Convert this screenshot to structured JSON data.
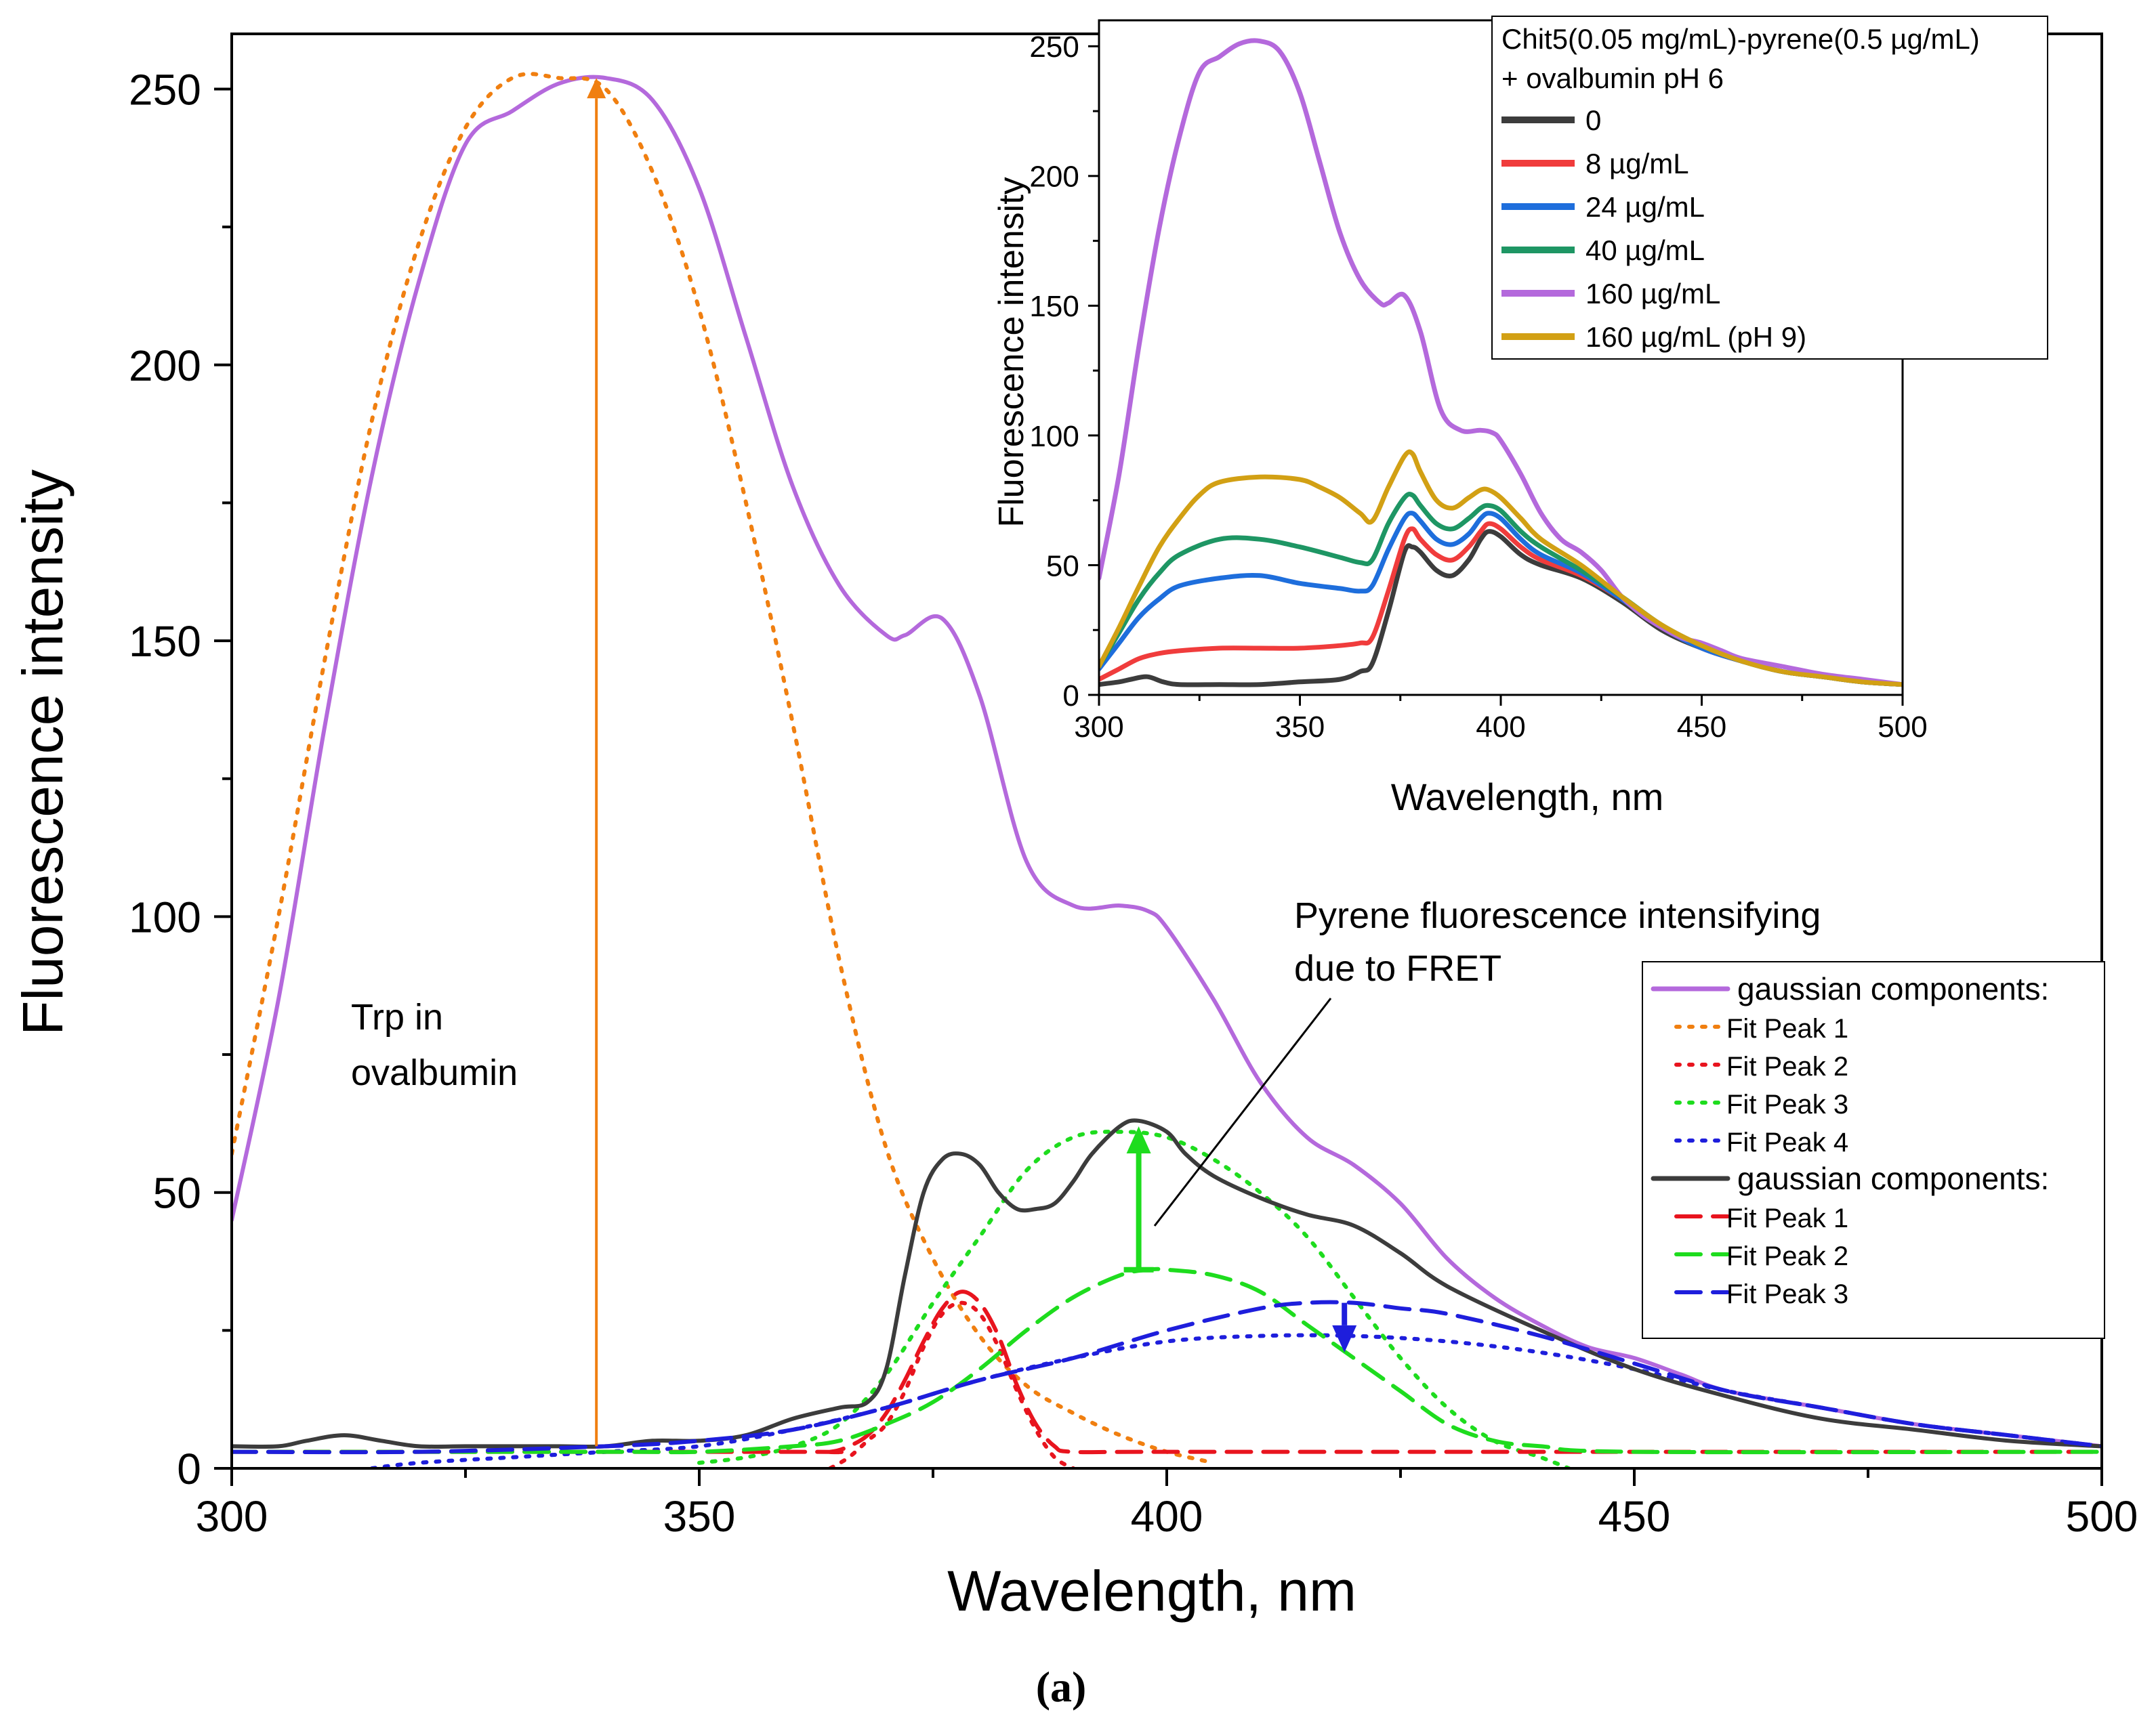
{
  "figure_label": "(a)",
  "chart_data": [
    {
      "id": "main",
      "type": "line",
      "xlabel": "Wavelength, nm",
      "ylabel": "Fluorescence intensity",
      "xlim": [
        300,
        500
      ],
      "ylim": [
        0,
        260
      ],
      "xticks": [
        300,
        350,
        400,
        450,
        500
      ],
      "yticks": [
        0,
        50,
        100,
        150,
        200,
        250
      ],
      "legend_position": "right",
      "legend": [
        {
          "label": "gaussian components:",
          "color": "#B469DC",
          "style": "solid"
        },
        {
          "label": "Fit Peak 1",
          "color": "#F07F10",
          "style": "dotted"
        },
        {
          "label": "Fit Peak 2",
          "color": "#E8141E",
          "style": "dotted"
        },
        {
          "label": "Fit Peak 3",
          "color": "#1EDC1E",
          "style": "dotted"
        },
        {
          "label": "Fit Peak 4",
          "color": "#1E1EDC",
          "style": "dotted"
        },
        {
          "label": "gaussian components:",
          "color": "#3C3C3C",
          "style": "solid"
        },
        {
          "label": "Fit Peak 1",
          "color": "#E8141E",
          "style": "dashed"
        },
        {
          "label": "Fit Peak 2",
          "color": "#1EDC1E",
          "style": "dashed"
        },
        {
          "label": "Fit Peak 3",
          "color": "#1E1EDC",
          "style": "dashed"
        }
      ],
      "annotations": {
        "trp": [
          "Trp in",
          "ovalbumin"
        ],
        "pyrene": [
          "Pyrene fluorescence intensifying",
          "due to FRET"
        ]
      },
      "arrows": [
        {
          "name": "trp-arrow",
          "color": "#F07F10",
          "x": 339,
          "y_from": 4,
          "y_to": 252
        },
        {
          "name": "fret-arrow",
          "color": "#1EDC1E",
          "x": 397,
          "y_from": 36,
          "y_to": 62
        },
        {
          "name": "blue-arrow",
          "color": "#1E1EDC",
          "x": 419,
          "y_from": 30,
          "y_to": 21
        }
      ],
      "series": [
        {
          "name": "Chit5-pyrene + ovalbumin 160 µg/mL",
          "color": "#B469DC",
          "style": "solid",
          "x": [
            300,
            305,
            310,
            315,
            320,
            325,
            330,
            335,
            340,
            345,
            350,
            355,
            360,
            365,
            370,
            372,
            376,
            380,
            385,
            390,
            395,
            398,
            400,
            405,
            410,
            415,
            420,
            425,
            430,
            435,
            440,
            445,
            450,
            455,
            460,
            470,
            480,
            490,
            500
          ],
          "y": [
            45,
            85,
            135,
            180,
            215,
            240,
            246,
            251,
            252,
            248,
            232,
            205,
            178,
            160,
            151,
            151,
            154,
            140,
            110,
            102,
            102,
            101,
            98,
            85,
            70,
            60,
            55,
            48,
            38,
            31,
            26,
            22,
            20,
            17,
            14,
            11,
            8,
            6,
            4
          ]
        },
        {
          "name": "Fit Peak 1 (orange dotted)",
          "color": "#F07F10",
          "style": "dotted",
          "x": [
            300,
            305,
            310,
            315,
            320,
            325,
            330,
            335,
            340,
            345,
            350,
            355,
            360,
            365,
            370,
            375,
            380,
            385,
            390,
            395,
            400,
            405
          ],
          "y": [
            57,
            100,
            147,
            190,
            222,
            243,
            252,
            252,
            250,
            235,
            210,
            175,
            135,
            92,
            58,
            38,
            24,
            15,
            10,
            6,
            3,
            1
          ]
        },
        {
          "name": "Fit Peak 2 (red dotted)",
          "color": "#E8141E",
          "style": "dotted",
          "x": [
            364,
            366,
            368,
            370,
            372,
            374,
            376,
            378,
            380,
            382,
            384,
            386,
            388,
            390
          ],
          "y": [
            0,
            2,
            5,
            8,
            14,
            22,
            28,
            30,
            28,
            22,
            14,
            7,
            2,
            0
          ]
        },
        {
          "name": "Fit Peak 3 (green dotted)",
          "color": "#1EDC1E",
          "style": "dotted",
          "x": [
            350,
            355,
            360,
            365,
            370,
            375,
            380,
            385,
            390,
            395,
            400,
            405,
            410,
            415,
            420,
            425,
            430,
            435,
            440,
            443
          ],
          "y": [
            1,
            2,
            4,
            8,
            17,
            30,
            42,
            54,
            60,
            61,
            60,
            56,
            50,
            42,
            31,
            20,
            11,
            5,
            2,
            0
          ]
        },
        {
          "name": "Fit Peak 4 (blue dotted)",
          "color": "#1E1EDC",
          "style": "dotted",
          "x": [
            315,
            320,
            330,
            340,
            350,
            360,
            370,
            380,
            390,
            400,
            410,
            420,
            430,
            440,
            450,
            460,
            470,
            480,
            490,
            500
          ],
          "y": [
            0,
            1,
            2,
            3,
            4,
            7,
            11,
            16,
            20,
            23,
            24,
            24,
            23,
            21,
            18,
            14,
            11,
            8,
            6,
            4
          ]
        },
        {
          "name": "Chit5-pyrene + ovalbumin 0 µg/mL",
          "color": "#3C3C3C",
          "style": "solid",
          "x": [
            300,
            305,
            308,
            312,
            316,
            320,
            325,
            330,
            335,
            340,
            345,
            350,
            355,
            360,
            365,
            368,
            370,
            372,
            374,
            376,
            378,
            380,
            382,
            384,
            386,
            388,
            390,
            392,
            395,
            397,
            400,
            402,
            405,
            410,
            415,
            420,
            425,
            430,
            440,
            450,
            460,
            470,
            480,
            490,
            500
          ],
          "y": [
            4,
            4,
            5,
            6,
            5,
            4,
            4,
            4,
            4,
            4,
            5,
            5,
            6,
            9,
            11,
            12,
            18,
            35,
            50,
            56,
            57,
            55,
            50,
            47,
            47,
            48,
            52,
            57,
            62,
            63,
            61,
            57,
            53,
            49,
            46,
            44,
            39,
            33,
            25,
            18,
            13,
            9,
            7,
            5,
            4
          ]
        },
        {
          "name": "Fit Peak 1 (red dashed)",
          "color": "#E8141E",
          "style": "dashed",
          "x": [
            300,
            360,
            364,
            366,
            368,
            370,
            372,
            374,
            376,
            378,
            380,
            382,
            384,
            386,
            388,
            390,
            400,
            450,
            500
          ],
          "y": [
            3,
            3,
            3,
            4,
            6,
            10,
            16,
            23,
            29,
            32,
            30,
            24,
            15,
            8,
            4,
            3,
            3,
            3,
            3
          ]
        },
        {
          "name": "Fit Peak 2 (green dashed)",
          "color": "#1EDC1E",
          "style": "dashed",
          "x": [
            300,
            340,
            350,
            360,
            365,
            370,
            375,
            380,
            385,
            390,
            395,
            398,
            400,
            405,
            410,
            415,
            420,
            425,
            430,
            435,
            440,
            450,
            500
          ],
          "y": [
            3,
            3,
            3,
            4,
            5,
            8,
            12,
            18,
            25,
            31,
            35,
            36,
            36,
            35,
            32,
            26,
            20,
            14,
            8,
            5,
            4,
            3,
            3
          ]
        },
        {
          "name": "Fit Peak 3 (blue dashed)",
          "color": "#1E1EDC",
          "style": "dashed",
          "x": [
            300,
            320,
            340,
            350,
            360,
            370,
            380,
            390,
            400,
            410,
            415,
            420,
            425,
            430,
            440,
            450,
            460,
            470,
            480,
            490,
            500
          ],
          "y": [
            3,
            3,
            4,
            5,
            7,
            11,
            16,
            20,
            25,
            29,
            30,
            30,
            29,
            28,
            24,
            19,
            14,
            11,
            8,
            6,
            4
          ]
        }
      ]
    },
    {
      "id": "inset",
      "type": "line",
      "xlabel": "Wavelength, nm",
      "ylabel": "Fluorescence intensity",
      "xlim": [
        300,
        500
      ],
      "ylim": [
        0,
        260
      ],
      "xticks": [
        300,
        350,
        400,
        450,
        500
      ],
      "yticks": [
        0,
        50,
        100,
        150,
        200,
        250
      ],
      "legend_position": "top-right",
      "legend_title": [
        "Chit5(0.05 mg/mL)-pyrene(0.5 µg/mL)",
        "+ ovalbumin pH 6"
      ],
      "legend": [
        {
          "label": "0",
          "color": "#3C3C3C"
        },
        {
          "label": "8 µg/mL",
          "color": "#F03C3C"
        },
        {
          "label": "24 µg/mL",
          "color": "#1E6EDC"
        },
        {
          "label": "40 µg/mL",
          "color": "#1E9664"
        },
        {
          "label": "160 µg/mL",
          "color": "#B469DC"
        },
        {
          "label": "160 µg/mL (pH 9)",
          "color": "#D2A014"
        }
      ],
      "series": [
        {
          "name": "0",
          "color": "#3C3C3C",
          "x": [
            300,
            305,
            308,
            312,
            316,
            320,
            330,
            340,
            350,
            360,
            365,
            368,
            372,
            376,
            378,
            380,
            384,
            388,
            392,
            395,
            397,
            400,
            405,
            410,
            420,
            430,
            440,
            450,
            460,
            470,
            480,
            490,
            500
          ],
          "y": [
            4,
            5,
            6,
            7,
            5,
            4,
            4,
            4,
            5,
            6,
            9,
            12,
            32,
            55,
            57,
            55,
            48,
            46,
            52,
            60,
            63,
            61,
            54,
            50,
            45,
            36,
            25,
            18,
            13,
            9,
            7,
            5,
            4
          ]
        },
        {
          "name": "8 µg/mL",
          "color": "#F03C3C",
          "x": [
            300,
            305,
            310,
            315,
            320,
            330,
            340,
            350,
            360,
            365,
            368,
            372,
            376,
            378,
            380,
            384,
            388,
            392,
            395,
            397,
            400,
            405,
            410,
            420,
            430,
            440,
            450,
            460,
            470,
            480,
            490,
            500
          ],
          "y": [
            6,
            10,
            14,
            16,
            17,
            18,
            18,
            18,
            19,
            20,
            22,
            40,
            60,
            64,
            60,
            54,
            52,
            57,
            63,
            66,
            64,
            57,
            52,
            46,
            37,
            26,
            18,
            13,
            9,
            7,
            5,
            4
          ]
        },
        {
          "name": "24 µg/mL",
          "color": "#1E6EDC",
          "x": [
            300,
            305,
            310,
            315,
            320,
            330,
            340,
            350,
            360,
            365,
            368,
            372,
            376,
            378,
            380,
            384,
            388,
            392,
            395,
            397,
            400,
            405,
            410,
            420,
            430,
            440,
            450,
            460,
            470,
            480,
            490,
            500
          ],
          "y": [
            10,
            20,
            30,
            37,
            42,
            45,
            46,
            43,
            41,
            40,
            42,
            56,
            68,
            70,
            67,
            60,
            58,
            62,
            68,
            70,
            68,
            60,
            54,
            47,
            37,
            26,
            18,
            13,
            9,
            7,
            5,
            4
          ]
        },
        {
          "name": "40 µg/mL",
          "color": "#1E9664",
          "x": [
            300,
            305,
            310,
            315,
            320,
            330,
            340,
            350,
            360,
            365,
            368,
            372,
            376,
            378,
            380,
            384,
            388,
            392,
            395,
            397,
            400,
            405,
            410,
            420,
            430,
            440,
            450,
            460,
            470,
            480,
            490,
            500
          ],
          "y": [
            11,
            24,
            37,
            47,
            54,
            60,
            60,
            57,
            53,
            51,
            52,
            66,
            76,
            77,
            73,
            66,
            64,
            68,
            72,
            73,
            71,
            63,
            57,
            48,
            38,
            27,
            19,
            13,
            9,
            7,
            5,
            4
          ]
        },
        {
          "name": "160 µg/mL",
          "color": "#B469DC",
          "x": [
            300,
            305,
            310,
            315,
            320,
            325,
            330,
            335,
            340,
            345,
            350,
            355,
            360,
            365,
            370,
            372,
            376,
            380,
            385,
            390,
            395,
            398,
            400,
            405,
            410,
            415,
            420,
            425,
            430,
            435,
            440,
            445,
            450,
            455,
            460,
            470,
            480,
            490,
            500
          ],
          "y": [
            45,
            85,
            135,
            180,
            215,
            240,
            246,
            251,
            252,
            248,
            232,
            205,
            178,
            160,
            151,
            151,
            154,
            140,
            110,
            102,
            102,
            101,
            98,
            85,
            70,
            60,
            55,
            48,
            38,
            31,
            26,
            22,
            20,
            17,
            14,
            11,
            8,
            6,
            4
          ]
        },
        {
          "name": "160 µg/mL (pH 9)",
          "color": "#D2A014",
          "x": [
            300,
            305,
            310,
            315,
            320,
            325,
            330,
            340,
            350,
            355,
            360,
            365,
            368,
            372,
            376,
            378,
            380,
            384,
            388,
            392,
            395,
            397,
            400,
            405,
            410,
            420,
            430,
            440,
            450,
            460,
            470,
            480,
            490,
            500
          ],
          "y": [
            11,
            26,
            42,
            57,
            68,
            77,
            82,
            84,
            83,
            80,
            76,
            70,
            67,
            80,
            92,
            93,
            86,
            75,
            72,
            76,
            79,
            79,
            76,
            68,
            60,
            50,
            38,
            27,
            19,
            13,
            9,
            7,
            5,
            4
          ]
        }
      ]
    }
  ]
}
